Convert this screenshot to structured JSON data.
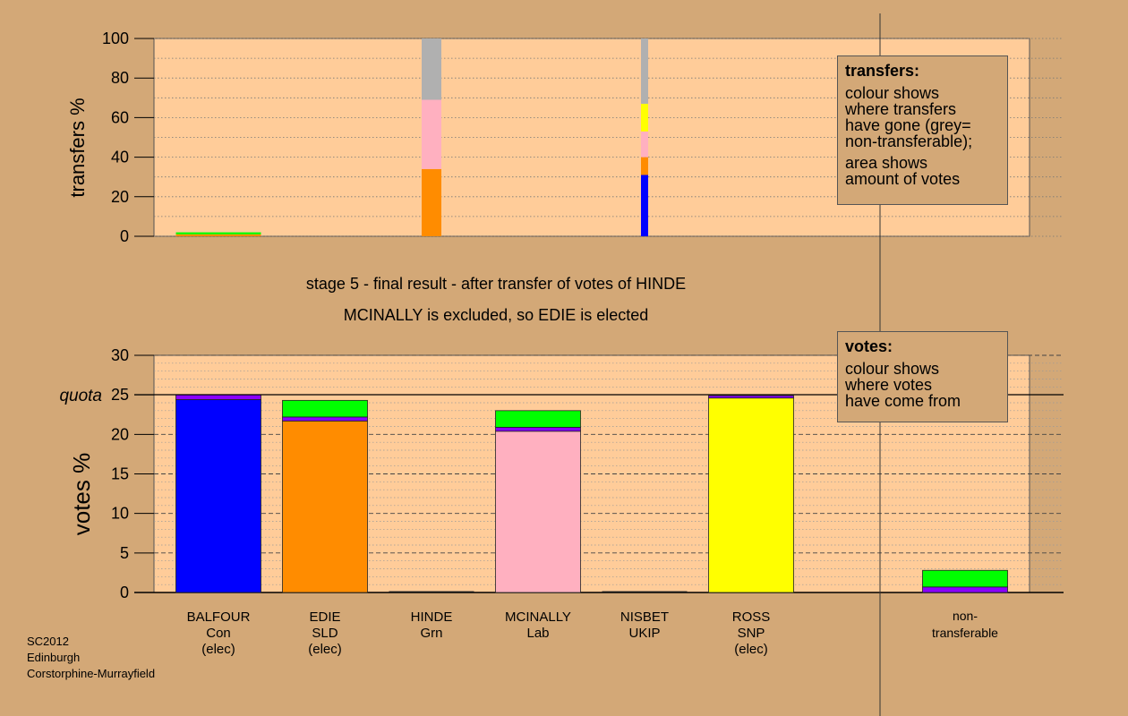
{
  "top_chart": {
    "ylabel": "transfers %",
    "yticks": [
      "0",
      "20",
      "40",
      "60",
      "80",
      "100"
    ],
    "legend": {
      "title": "transfers:",
      "lines1": [
        "colour shows",
        "where transfers",
        "have gone (grey=",
        "non-transferable);"
      ],
      "lines2": [
        "area shows",
        "amount of votes"
      ]
    }
  },
  "middle": {
    "line1": "stage 5 - final result - after transfer of votes of HINDE",
    "line2": "MCINALLY is excluded, so EDIE is elected"
  },
  "bottom_chart": {
    "ylabel": "votes %",
    "yticks": [
      "0",
      "5",
      "10",
      "15",
      "20",
      "25",
      "30"
    ],
    "quota_label": "quota",
    "legend": {
      "title": "votes:",
      "lines": [
        "colour shows",
        "where votes",
        "have come from"
      ]
    }
  },
  "candidates": [
    {
      "name": "BALFOUR",
      "party": "Con",
      "status": "(elec)"
    },
    {
      "name": "EDIE",
      "party": "SLD",
      "status": "(elec)"
    },
    {
      "name": "HINDE",
      "party": "Grn",
      "status": ""
    },
    {
      "name": "MCINALLY",
      "party": "Lab",
      "status": ""
    },
    {
      "name": "NISBET",
      "party": "UKIP",
      "status": ""
    },
    {
      "name": "ROSS",
      "party": "SNP",
      "status": "(elec)"
    }
  ],
  "nontransferable_label": [
    "non-",
    "transferable"
  ],
  "footer": [
    "SC2012",
    "Edinburgh",
    "Corstorphine-Murrayfield"
  ],
  "colors": {
    "background": "#d3a877",
    "plot_background": "#ffcc99",
    "Con": "#0000ff",
    "SLD": "#ff8c00",
    "Grn": "#00ff00",
    "Lab": "#ffb0c0",
    "UKIP": "#8b00ff",
    "SNP": "#ffff00",
    "nontransferable": "#b0b0b0"
  },
  "chart_data": [
    {
      "type": "bar",
      "title": "",
      "ylabel": "transfers %",
      "ylim": [
        0,
        100
      ],
      "grid": true,
      "legend_position": "top-right",
      "transfers": [
        {
          "from": "BALFOUR",
          "segments": [
            {
              "to": "SLD",
              "value": 1.0
            },
            {
              "to": "Grn",
              "value": 1.0
            }
          ]
        },
        {
          "from": "HINDE",
          "segments": [
            {
              "to": "SLD",
              "value": 34
            },
            {
              "to": "Lab",
              "value": 35
            },
            {
              "to": "non-transferable",
              "value": 31
            }
          ]
        },
        {
          "from": "NISBET",
          "segments": [
            {
              "to": "Con",
              "value": 31
            },
            {
              "to": "SLD",
              "value": 9
            },
            {
              "to": "Lab",
              "value": 13
            },
            {
              "to": "SNP",
              "value": 14
            },
            {
              "to": "non-transferable",
              "value": 33
            }
          ]
        }
      ]
    },
    {
      "type": "bar",
      "title": "",
      "ylabel": "votes %",
      "ylim": [
        0,
        30
      ],
      "quota": 25,
      "grid": true,
      "legend_position": "top-right",
      "stacks": [
        {
          "candidate": "BALFOUR",
          "segments": [
            {
              "from": "Con",
              "value": 24.4
            },
            {
              "from": "UKIP",
              "value": 0.6
            }
          ]
        },
        {
          "candidate": "EDIE",
          "segments": [
            {
              "from": "SLD",
              "value": 21.7
            },
            {
              "from": "UKIP",
              "value": 0.5
            },
            {
              "from": "Grn",
              "value": 2.1
            }
          ]
        },
        {
          "candidate": "HINDE",
          "segments": []
        },
        {
          "candidate": "MCINALLY",
          "segments": [
            {
              "from": "Lab",
              "value": 20.4
            },
            {
              "from": "UKIP",
              "value": 0.5
            },
            {
              "from": "Grn",
              "value": 2.1
            }
          ]
        },
        {
          "candidate": "NISBET",
          "segments": []
        },
        {
          "candidate": "ROSS",
          "segments": [
            {
              "from": "SNP",
              "value": 24.6
            },
            {
              "from": "UKIP",
              "value": 0.3
            }
          ]
        },
        {
          "candidate": "non-transferable",
          "segments": [
            {
              "from": "UKIP",
              "value": 0.7
            },
            {
              "from": "Grn",
              "value": 2.1
            }
          ]
        }
      ]
    }
  ]
}
